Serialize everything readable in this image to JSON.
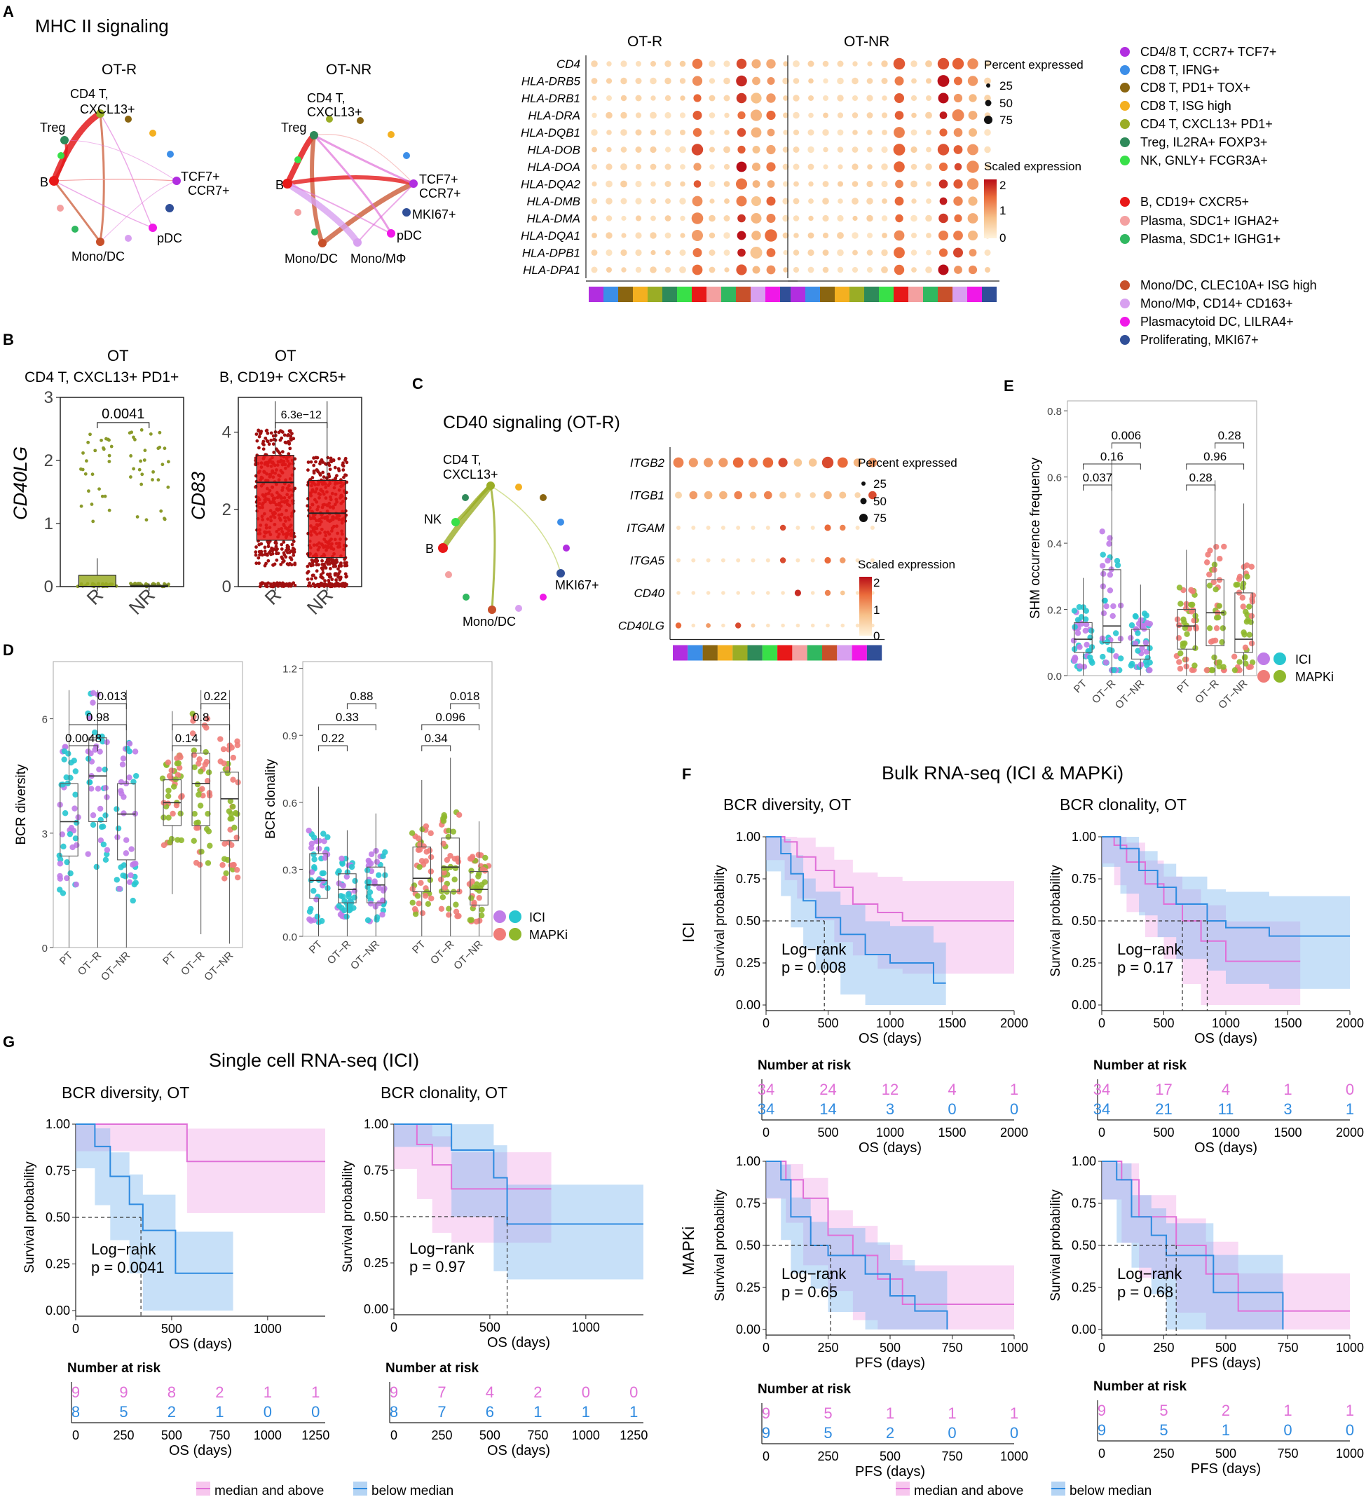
{
  "colors": {
    "ot_r_pink": "#e070d8",
    "blue": "#2f8be0",
    "red": "#e31a1c",
    "olive": "#8a9a2a",
    "ici_purple": "#c07ce8",
    "ici_cyan": "#27c6d0",
    "mapki_salmon": "#f07c78",
    "mapki_green": "#8fb82c"
  },
  "panelA": {
    "letter": "A",
    "title": "MHC II signaling",
    "net_r": {
      "title": "OT-R",
      "labels": [
        "CD4 T,",
        "CXCL13+",
        "Treg",
        "B",
        "TCF7+",
        "CCR7+",
        "pDC",
        "Mono/DC"
      ]
    },
    "net_nr": {
      "title": "OT-NR",
      "labels": [
        "CD4 T,",
        "CXCL13+",
        "Treg",
        "B",
        "TCF7+",
        "CCR7+",
        "MKI67+",
        "pDC",
        "Mono/DC",
        "Mono/MΦ"
      ]
    },
    "dot_titles": [
      "OT-R",
      "OT-NR"
    ],
    "genes": [
      "CD4",
      "HLA-DRB5",
      "HLA-DRB1",
      "HLA-DRA",
      "HLA-DQB1",
      "HLA-DOB",
      "HLA-DOA",
      "HLA-DQA2",
      "HLA-DMB",
      "HLA-DMA",
      "HLA-DQA1",
      "HLA-DPB1",
      "HLA-DPA1"
    ],
    "pct_legend": {
      "title": "Percent expressed",
      "values": [
        "25",
        "50",
        "75"
      ]
    },
    "scale_legend": {
      "title": "Scaled expression",
      "ticks": [
        "2",
        "1",
        "0"
      ]
    },
    "celltypes": [
      {
        "label": "CD4/8 T, CCR7+ TCF7+",
        "color": "#b12ee0"
      },
      {
        "label": "CD8 T, IFNG+",
        "color": "#3c8ee8"
      },
      {
        "label": "CD8 T, PD1+ TOX+",
        "color": "#8a6510"
      },
      {
        "label": "CD8 T, ISG high",
        "color": "#f4b020"
      },
      {
        "label": "CD4 T, CXCL13+ PD1+",
        "color": "#9aad25"
      },
      {
        "label": "Treg, IL2RA+ FOXP3+",
        "color": "#2e8a5a"
      },
      {
        "label": "NK, GNLY+ FCGR3A+",
        "color": "#38e048"
      },
      {
        "label": "B, CD19+ CXCR5+",
        "color": "#e81818"
      },
      {
        "label": "Plasma, SDC1+ IGHA2+",
        "color": "#f4a0a0"
      },
      {
        "label": "Plasma, SDC1+ IGHG1+",
        "color": "#30b860"
      },
      {
        "label": "Mono/DC, CLEC10A+ ISG high",
        "color": "#c8502a"
      },
      {
        "label": "Mono/MΦ, CD14+ CD163+",
        "color": "#d8a0f0"
      },
      {
        "label": "Plasmacytoid DC, LILRA4+",
        "color": "#f018e8"
      },
      {
        "label": "Proliferating, MKI67+",
        "color": "#304f98"
      }
    ]
  },
  "panelB": {
    "letter": "B",
    "left": {
      "title1": "OT",
      "title2": "CD4 T, CXCL13+ PD1+",
      "ylabel": "CD40LG",
      "yticks": [
        "0",
        "1",
        "2",
        "3"
      ],
      "ymax": 3,
      "xcats": [
        "R",
        "NR"
      ],
      "pval": "0.0041",
      "r_box": [
        0,
        0,
        0.18
      ],
      "nr_box": [
        0,
        0,
        0.02
      ]
    },
    "right": {
      "title1": "OT",
      "title2": "B, CD19+ CXCR5+",
      "ylabel": "CD83",
      "yticks": [
        "0",
        "2",
        "4"
      ],
      "ymax": 4.9,
      "xcats": [
        "R",
        "NR"
      ],
      "pval": "6.3e−12",
      "r_box": [
        1.2,
        2.7,
        3.4
      ],
      "nr_box": [
        0.75,
        1.9,
        2.75
      ]
    }
  },
  "panelC": {
    "letter": "C",
    "title": "CD40 signaling (OT-R)",
    "net_labels": [
      "CD4 T,",
      "CXCL13+",
      "NK",
      "B",
      "MKI67+",
      "Mono/DC"
    ],
    "genes": [
      "ITGB2",
      "ITGB1",
      "ITGAM",
      "ITGA5",
      "CD40",
      "CD40LG"
    ],
    "pct_legend": {
      "title": "Percent expressed",
      "values": [
        "25",
        "50",
        "75"
      ]
    },
    "scale_legend": {
      "title": "Scaled expression",
      "ticks": [
        "2",
        "1",
        "0"
      ]
    }
  },
  "panelD": {
    "letter": "D",
    "diversity": {
      "ylabel": "BCR diversity",
      "yticks": [
        "0",
        "3",
        "6"
      ],
      "ymax": 7.5,
      "xcats": [
        "PT",
        "OT−R",
        "OT−NR",
        "PT",
        "OT−R",
        "OT−NR"
      ],
      "pvals_ici": [
        "0.0048",
        "0.98",
        "0.013"
      ],
      "pvals_mapki": [
        "0.14",
        "0.8",
        "0.22"
      ],
      "boxes": [
        [
          2.4,
          3.3,
          4.3
        ],
        [
          3.3,
          4.5,
          5.5
        ],
        [
          2.3,
          3.5,
          4.3
        ],
        [
          3.2,
          3.8,
          4.4
        ],
        [
          3.2,
          4.3,
          5.1
        ],
        [
          2.8,
          3.9,
          4.6
        ]
      ]
    },
    "clonality": {
      "ylabel": "BCR clonality",
      "yticks": [
        "0.0",
        "0.3",
        "0.6",
        "0.9",
        "1.2"
      ],
      "ymax": 1.23,
      "xcats": [
        "PT",
        "OT−R",
        "OT−NR",
        "PT",
        "OT−R",
        "OT−NR"
      ],
      "pvals_ici": [
        "0.22",
        "0.33",
        "0.88"
      ],
      "pvals_mapki": [
        "0.34",
        "0.096",
        "0.018"
      ],
      "boxes": [
        [
          0.17,
          0.25,
          0.37
        ],
        [
          0.15,
          0.21,
          0.28
        ],
        [
          0.15,
          0.23,
          0.31
        ],
        [
          0.2,
          0.26,
          0.4
        ],
        [
          0.2,
          0.31,
          0.44
        ],
        [
          0.14,
          0.21,
          0.29
        ]
      ]
    },
    "legend": [
      "ICI",
      "MAPKi"
    ]
  },
  "panelE": {
    "letter": "E",
    "ylabel": "SHM occurrence frequency",
    "yticks": [
      "0.0",
      "0.2",
      "0.4",
      "0.6",
      "0.8"
    ],
    "ymax": 0.83,
    "xcats": [
      "PT",
      "OT−R",
      "OT−NR",
      "PT",
      "OT−R",
      "OT−NR"
    ],
    "pvals_ici": [
      "0.037",
      "0.16",
      "0.006"
    ],
    "pvals_mapki": [
      "0.28",
      "0.96",
      "0.28"
    ],
    "boxes": [
      [
        0.07,
        0.11,
        0.16
      ],
      [
        0.1,
        0.15,
        0.32
      ],
      [
        0.05,
        0.09,
        0.14
      ],
      [
        0.08,
        0.15,
        0.2
      ],
      [
        0.09,
        0.19,
        0.29
      ],
      [
        0.07,
        0.11,
        0.25
      ]
    ],
    "legend": [
      "ICI",
      "MAPKi"
    ]
  },
  "panelF": {
    "letter": "F",
    "title": "Bulk RNA-seq (ICI & MAPKi)",
    "col1": "BCR diversity, OT",
    "col2": "BCR clonality, OT",
    "row1": "ICI",
    "row2": "MAPKi",
    "ylabel": "Survival probability",
    "yticks": [
      "0.00",
      "0.25",
      "0.50",
      "0.75",
      "1.00"
    ],
    "risk_title": "Number at risk",
    "legend": [
      "median and above",
      "below median"
    ],
    "plots": [
      {
        "xlabel": "OS (days)",
        "xticks": [
          "0",
          "500",
          "1000",
          "1500",
          "2000"
        ],
        "xmax": 2000,
        "logrank": "Log−rank",
        "p": "p = 0.008",
        "median_x": [
          470
        ],
        "risk_x": [
          0,
          500,
          1000,
          1500,
          2000
        ],
        "risk_hi": [
          "34",
          "24",
          "12",
          "4",
          "1"
        ],
        "risk_lo": [
          "34",
          "14",
          "3",
          "0",
          "0"
        ],
        "hi": [
          [
            0,
            1
          ],
          [
            150,
            0.97
          ],
          [
            250,
            0.88
          ],
          [
            400,
            0.8
          ],
          [
            550,
            0.7
          ],
          [
            700,
            0.6
          ],
          [
            900,
            0.55
          ],
          [
            1100,
            0.5
          ],
          [
            2000,
            0.5
          ]
        ],
        "lo": [
          [
            0,
            1
          ],
          [
            120,
            0.9
          ],
          [
            200,
            0.78
          ],
          [
            300,
            0.62
          ],
          [
            400,
            0.52
          ],
          [
            600,
            0.42
          ],
          [
            800,
            0.3
          ],
          [
            1000,
            0.25
          ],
          [
            1350,
            0.13
          ],
          [
            1450,
            0.13
          ]
        ]
      },
      {
        "xlabel": "OS (days)",
        "xticks": [
          "0",
          "500",
          "1000",
          "1500",
          "2000"
        ],
        "xmax": 2000,
        "logrank": "Log−rank",
        "p": "p = 0.17",
        "median_x": [
          650,
          850
        ],
        "risk_x": [
          0,
          500,
          1000,
          1500,
          2000
        ],
        "risk_hi": [
          "34",
          "17",
          "4",
          "1",
          "0"
        ],
        "risk_lo": [
          "34",
          "21",
          "11",
          "3",
          "1"
        ],
        "hi": [
          [
            0,
            1
          ],
          [
            100,
            0.95
          ],
          [
            200,
            0.85
          ],
          [
            350,
            0.72
          ],
          [
            500,
            0.6
          ],
          [
            650,
            0.5
          ],
          [
            800,
            0.38
          ],
          [
            1000,
            0.26
          ],
          [
            1600,
            0.26
          ]
        ],
        "lo": [
          [
            0,
            1
          ],
          [
            150,
            0.93
          ],
          [
            300,
            0.8
          ],
          [
            450,
            0.7
          ],
          [
            600,
            0.6
          ],
          [
            850,
            0.5
          ],
          [
            1000,
            0.46
          ],
          [
            1350,
            0.41
          ],
          [
            2000,
            0.41
          ]
        ]
      },
      {
        "xlabel": "PFS (days)",
        "xticks": [
          "0",
          "250",
          "500",
          "750",
          "1000"
        ],
        "xmax": 1000,
        "logrank": "Log−rank",
        "p": "p = 0.65",
        "median_x": [
          260
        ],
        "risk_x": [
          0,
          250,
          500,
          750,
          1000
        ],
        "risk_hi": [
          "9",
          "5",
          "1",
          "1",
          "1"
        ],
        "risk_lo": [
          "9",
          "5",
          "2",
          "0",
          "0"
        ],
        "hi": [
          [
            0,
            1
          ],
          [
            80,
            0.89
          ],
          [
            150,
            0.78
          ],
          [
            250,
            0.56
          ],
          [
            350,
            0.44
          ],
          [
            450,
            0.3
          ],
          [
            550,
            0.15
          ],
          [
            1000,
            0.15
          ]
        ],
        "lo": [
          [
            0,
            1
          ],
          [
            60,
            0.89
          ],
          [
            100,
            0.67
          ],
          [
            180,
            0.5
          ],
          [
            250,
            0.44
          ],
          [
            400,
            0.33
          ],
          [
            500,
            0.2
          ],
          [
            600,
            0.11
          ],
          [
            730,
            0
          ]
        ]
      },
      {
        "xlabel": "PFS (days)",
        "xticks": [
          "0",
          "250",
          "500",
          "750",
          "1000"
        ],
        "xmax": 1000,
        "logrank": "Log−rank",
        "p": "p = 0.68",
        "median_x": [
          260,
          300
        ],
        "risk_x": [
          0,
          250,
          500,
          750,
          1000
        ],
        "risk_hi": [
          "9",
          "5",
          "2",
          "1",
          "1"
        ],
        "risk_lo": [
          "9",
          "5",
          "1",
          "0",
          "0"
        ],
        "hi": [
          [
            0,
            1
          ],
          [
            80,
            0.89
          ],
          [
            150,
            0.67
          ],
          [
            300,
            0.5
          ],
          [
            420,
            0.33
          ],
          [
            550,
            0.11
          ],
          [
            1000,
            0.11
          ]
        ],
        "lo": [
          [
            0,
            1
          ],
          [
            60,
            0.89
          ],
          [
            120,
            0.67
          ],
          [
            200,
            0.56
          ],
          [
            260,
            0.44
          ],
          [
            450,
            0.22
          ],
          [
            730,
            0
          ]
        ]
      }
    ]
  },
  "panelG": {
    "letter": "G",
    "title": "Single cell RNA-seq (ICI)",
    "col1": "BCR diversity, OT",
    "col2": "BCR clonality, OT",
    "ylabel": "Survival probability",
    "yticks": [
      "0.00",
      "0.25",
      "0.50",
      "0.75",
      "1.00"
    ],
    "risk_title": "Number at risk",
    "legend": [
      "median and above",
      "below median"
    ],
    "plots": [
      {
        "xlabel": "OS (days)",
        "xticks": [
          "0",
          "500",
          "1000"
        ],
        "xmax": 1300,
        "logrank": "Log−rank",
        "p": "p = 0.0041",
        "median_x": [
          340
        ],
        "risk_xticks": [
          "0",
          "250",
          "500",
          "750",
          "1000",
          "1250"
        ],
        "risk_x": [
          0,
          250,
          500,
          750,
          1000,
          1250
        ],
        "risk_hi": [
          "9",
          "9",
          "8",
          "2",
          "1",
          "1"
        ],
        "risk_lo": [
          "8",
          "5",
          "2",
          "1",
          "0",
          "0"
        ],
        "hi": [
          [
            0,
            1
          ],
          [
            580,
            1
          ],
          [
            580,
            0.8
          ],
          [
            1300,
            0.8
          ]
        ],
        "lo": [
          [
            0,
            1
          ],
          [
            100,
            0.88
          ],
          [
            180,
            0.72
          ],
          [
            280,
            0.57
          ],
          [
            350,
            0.43
          ],
          [
            520,
            0.2
          ],
          [
            820,
            0.2
          ]
        ]
      },
      {
        "xlabel": "OS (days)",
        "xticks": [
          "0",
          "500",
          "1000"
        ],
        "xmax": 1300,
        "logrank": "Log−rank",
        "p": "p = 0.97",
        "median_x": [
          590
        ],
        "risk_xticks": [
          "0",
          "250",
          "500",
          "750",
          "1000",
          "1250"
        ],
        "risk_x": [
          0,
          250,
          500,
          750,
          1000,
          1250
        ],
        "risk_hi": [
          "9",
          "7",
          "4",
          "2",
          "0",
          "0"
        ],
        "risk_lo": [
          "8",
          "7",
          "6",
          "1",
          "1",
          "1"
        ],
        "hi": [
          [
            0,
            1
          ],
          [
            120,
            0.89
          ],
          [
            200,
            0.78
          ],
          [
            300,
            0.65
          ],
          [
            820,
            0.65
          ]
        ],
        "lo": [
          [
            0,
            1
          ],
          [
            300,
            1
          ],
          [
            300,
            0.86
          ],
          [
            520,
            0.71
          ],
          [
            590,
            0.46
          ],
          [
            1300,
            0.46
          ]
        ]
      }
    ]
  }
}
